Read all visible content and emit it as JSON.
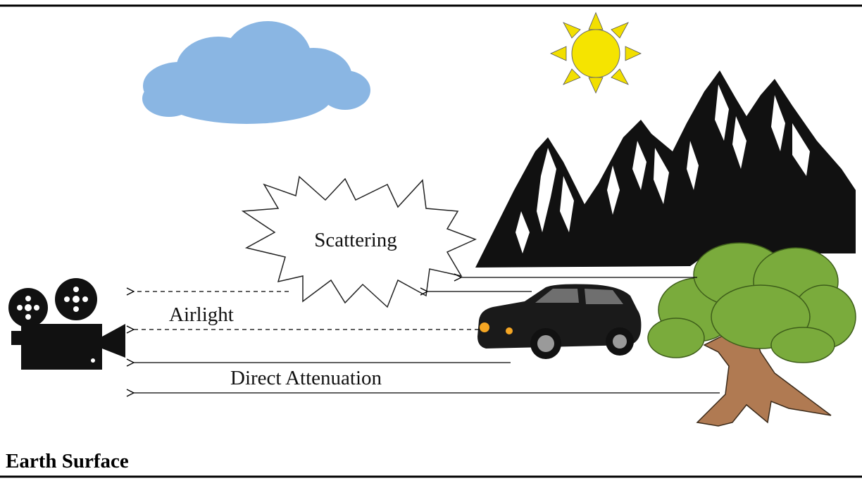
{
  "labels": {
    "scattering": "Scattering",
    "airlight": "Airlight",
    "direct_attenuation": "Direct Attenuation",
    "earth_surface": "Earth Surface"
  },
  "colors": {
    "cloud": "#8ab6e3",
    "sun": "#f5e400",
    "sun_rays": "#f2df00",
    "tree_foliage": "#7aab3c",
    "tree_trunk": "#b07a52",
    "car_body": "#1a1a1a",
    "headlight": "#f5a623",
    "mountain": "#111111",
    "line": "#000000"
  },
  "icons": {
    "camera": "film-camera-icon",
    "cloud": "cloud-icon",
    "sun": "sun-icon",
    "mountains": "mountains-icon",
    "tree": "tree-icon",
    "car": "car-icon",
    "burst": "scattering-burst-shape"
  }
}
